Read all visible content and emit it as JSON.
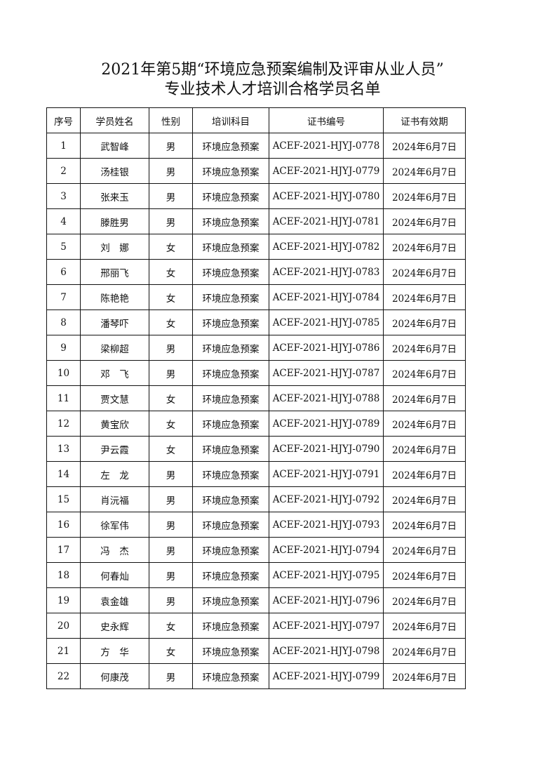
{
  "title_line1": "2021年第5期“环境应急预案编制及评审从业人员”",
  "title_line2": "专业技术人才培训合格学员名单",
  "columns": [
    "序号",
    "学员姓名",
    "性别",
    "培训科目",
    "证书编号",
    "证书有效期"
  ],
  "rows": [
    [
      "1",
      "武智峰",
      "男",
      "环境应急预案",
      "ACEF-2021-HJYJ-0778",
      "2024年6月7日"
    ],
    [
      "2",
      "汤桂银",
      "男",
      "环境应急预案",
      "ACEF-2021-HJYJ-0779",
      "2024年6月7日"
    ],
    [
      "3",
      "张来玉",
      "男",
      "环境应急预案",
      "ACEF-2021-HJYJ-0780",
      "2024年6月7日"
    ],
    [
      "4",
      "滕胜男",
      "男",
      "环境应急预案",
      "ACEF-2021-HJYJ-0781",
      "2024年6月7日"
    ],
    [
      "5",
      "刘　娜",
      "女",
      "环境应急预案",
      "ACEF-2021-HJYJ-0782",
      "2024年6月7日"
    ],
    [
      "6",
      "邢丽飞",
      "女",
      "环境应急预案",
      "ACEF-2021-HJYJ-0783",
      "2024年6月7日"
    ],
    [
      "7",
      "陈艳艳",
      "女",
      "环境应急预案",
      "ACEF-2021-HJYJ-0784",
      "2024年6月7日"
    ],
    [
      "8",
      "潘琴吓",
      "女",
      "环境应急预案",
      "ACEF-2021-HJYJ-0785",
      "2024年6月7日"
    ],
    [
      "9",
      "梁柳超",
      "男",
      "环境应急预案",
      "ACEF-2021-HJYJ-0786",
      "2024年6月7日"
    ],
    [
      "10",
      "邓　飞",
      "男",
      "环境应急预案",
      "ACEF-2021-HJYJ-0787",
      "2024年6月7日"
    ],
    [
      "11",
      "贾文慧",
      "女",
      "环境应急预案",
      "ACEF-2021-HJYJ-0788",
      "2024年6月7日"
    ],
    [
      "12",
      "黄宝欣",
      "女",
      "环境应急预案",
      "ACEF-2021-HJYJ-0789",
      "2024年6月7日"
    ],
    [
      "13",
      "尹云霞",
      "女",
      "环境应急预案",
      "ACEF-2021-HJYJ-0790",
      "2024年6月7日"
    ],
    [
      "14",
      "左　龙",
      "男",
      "环境应急预案",
      "ACEF-2021-HJYJ-0791",
      "2024年6月7日"
    ],
    [
      "15",
      "肖沅福",
      "男",
      "环境应急预案",
      "ACEF-2021-HJYJ-0792",
      "2024年6月7日"
    ],
    [
      "16",
      "徐军伟",
      "男",
      "环境应急预案",
      "ACEF-2021-HJYJ-0793",
      "2024年6月7日"
    ],
    [
      "17",
      "冯　杰",
      "男",
      "环境应急预案",
      "ACEF-2021-HJYJ-0794",
      "2024年6月7日"
    ],
    [
      "18",
      "何春灿",
      "男",
      "环境应急预案",
      "ACEF-2021-HJYJ-0795",
      "2024年6月7日"
    ],
    [
      "19",
      "袁金雄",
      "男",
      "环境应急预案",
      "ACEF-2021-HJYJ-0796",
      "2024年6月7日"
    ],
    [
      "20",
      "史永辉",
      "女",
      "环境应急预案",
      "ACEF-2021-HJYJ-0797",
      "2024年6月7日"
    ],
    [
      "21",
      "方　华",
      "女",
      "环境应急预案",
      "ACEF-2021-HJYJ-0798",
      "2024年6月7日"
    ],
    [
      "22",
      "何康茂",
      "男",
      "环境应急预案",
      "ACEF-2021-HJYJ-0799",
      "2024年6月7日"
    ]
  ]
}
